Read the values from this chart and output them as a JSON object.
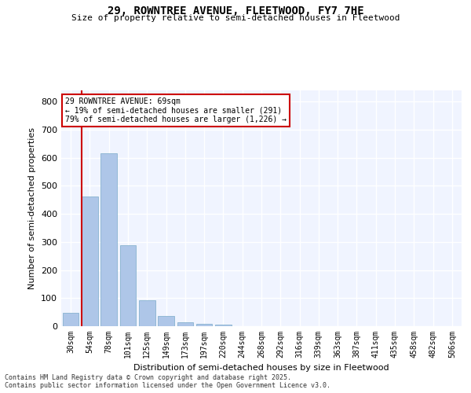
{
  "title_line1": "29, ROWNTREE AVENUE, FLEETWOOD, FY7 7HE",
  "title_line2": "Size of property relative to semi-detached houses in Fleetwood",
  "xlabel": "Distribution of semi-detached houses by size in Fleetwood",
  "ylabel": "Number of semi-detached properties",
  "categories": [
    "30sqm",
    "54sqm",
    "78sqm",
    "101sqm",
    "125sqm",
    "149sqm",
    "173sqm",
    "197sqm",
    "220sqm",
    "244sqm",
    "268sqm",
    "292sqm",
    "316sqm",
    "339sqm",
    "363sqm",
    "387sqm",
    "411sqm",
    "435sqm",
    "458sqm",
    "482sqm",
    "506sqm"
  ],
  "values": [
    47,
    462,
    617,
    289,
    93,
    36,
    14,
    9,
    5,
    0,
    0,
    0,
    0,
    0,
    0,
    0,
    0,
    0,
    0,
    0,
    0
  ],
  "bar_color": "#aec6e8",
  "bar_edge_color": "#7aaac8",
  "vline_x": 1,
  "vline_color": "#cc0000",
  "annotation_title": "29 ROWNTREE AVENUE: 69sqm",
  "annotation_line2": "← 19% of semi-detached houses are smaller (291)",
  "annotation_line3": "79% of semi-detached houses are larger (1,226) →",
  "annotation_box_color": "#ffffff",
  "annotation_box_edge_color": "#cc0000",
  "ylim": [
    0,
    840
  ],
  "yticks": [
    0,
    100,
    200,
    300,
    400,
    500,
    600,
    700,
    800
  ],
  "background_color": "#f0f4ff",
  "grid_color": "#ffffff",
  "footer_line1": "Contains HM Land Registry data © Crown copyright and database right 2025.",
  "footer_line2": "Contains public sector information licensed under the Open Government Licence v3.0."
}
